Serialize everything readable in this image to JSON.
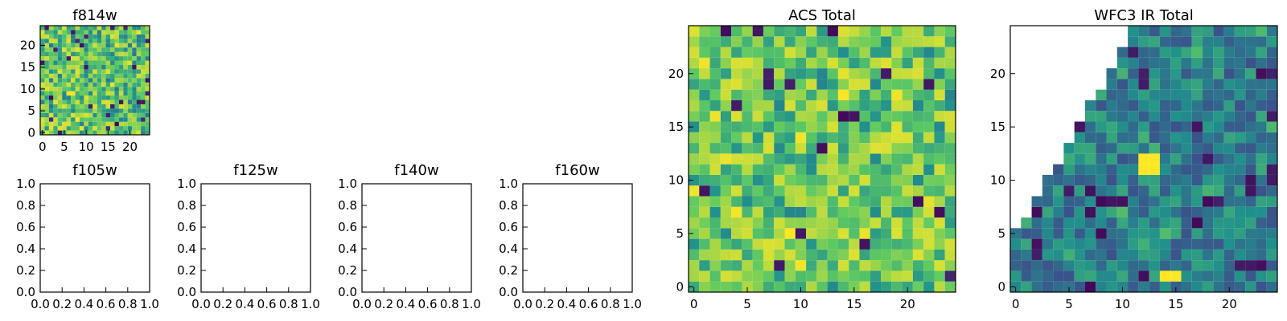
{
  "figure": {
    "background": "#ffffff",
    "colormap": "viridis"
  },
  "chart_data": [
    {
      "id": "f814w",
      "type": "heatmap",
      "title": "f814w",
      "grid": false,
      "xlim": [
        -0.5,
        24.5
      ],
      "ylim": [
        -0.5,
        24.5
      ],
      "xticks": [
        0,
        5,
        10,
        15,
        20
      ],
      "yticks": [
        0,
        5,
        10,
        15,
        20
      ],
      "tick_labels_x": [
        "0",
        "5",
        "10",
        "15",
        "20"
      ],
      "tick_labels_y": [
        "0",
        "5",
        "10",
        "15",
        "20"
      ],
      "origin": "lower",
      "shape": [
        25,
        25
      ],
      "value_range": [
        0,
        1
      ],
      "values": null,
      "note_values": "25x25 grid of noise-like values (seeded pseudo-random), mostly mid-high with sparse low-valued pixels"
    },
    {
      "id": "f105w",
      "type": "heatmap",
      "title": "f105w",
      "empty": true,
      "xlim": [
        0,
        1
      ],
      "ylim": [
        0,
        1
      ],
      "tick_labels_x": [
        "0.0",
        "0.2",
        "0.4",
        "0.6",
        "0.8",
        "1.0"
      ],
      "tick_labels_y": [
        "0.0",
        "0.2",
        "0.4",
        "0.6",
        "0.8",
        "1.0"
      ]
    },
    {
      "id": "f125w",
      "type": "heatmap",
      "title": "f125w",
      "empty": true,
      "xlim": [
        0,
        1
      ],
      "ylim": [
        0,
        1
      ],
      "tick_labels_x": [
        "0.0",
        "0.2",
        "0.4",
        "0.6",
        "0.8",
        "1.0"
      ],
      "tick_labels_y": [
        "0.0",
        "0.2",
        "0.4",
        "0.6",
        "0.8",
        "1.0"
      ]
    },
    {
      "id": "f140w",
      "type": "heatmap",
      "title": "f140w",
      "empty": true,
      "xlim": [
        0,
        1
      ],
      "ylim": [
        0,
        1
      ],
      "tick_labels_x": [
        "0.0",
        "0.2",
        "0.4",
        "0.6",
        "0.8",
        "1.0"
      ],
      "tick_labels_y": [
        "0.0",
        "0.2",
        "0.4",
        "0.6",
        "0.8",
        "1.0"
      ]
    },
    {
      "id": "f160w",
      "type": "heatmap",
      "title": "f160w",
      "empty": true,
      "xlim": [
        0,
        1
      ],
      "ylim": [
        0,
        1
      ],
      "tick_labels_x": [
        "0.0",
        "0.2",
        "0.4",
        "0.6",
        "0.8",
        "1.0"
      ],
      "tick_labels_y": [
        "0.0",
        "0.2",
        "0.4",
        "0.6",
        "0.8",
        "1.0"
      ]
    },
    {
      "id": "acs_total",
      "type": "heatmap",
      "title": "ACS Total",
      "grid": false,
      "xlim": [
        -0.5,
        24.5
      ],
      "ylim": [
        -0.5,
        24.5
      ],
      "xticks": [
        0,
        5,
        10,
        15,
        20
      ],
      "yticks": [
        0,
        5,
        10,
        15,
        20
      ],
      "tick_labels_x": [
        "0",
        "5",
        "10",
        "15",
        "20"
      ],
      "tick_labels_y": [
        "0",
        "5",
        "10",
        "15",
        "20"
      ],
      "origin": "lower",
      "shape": [
        25,
        25
      ],
      "value_range": [
        0,
        1
      ],
      "values": null,
      "note_values": "25x25 grid of noise-like values (seeded pseudo-random), mostly mid-high with sparse low-valued pixels"
    },
    {
      "id": "wfc3_ir_total",
      "type": "heatmap",
      "title": "WFC3 IR Total",
      "grid": false,
      "xlim": [
        -0.5,
        24.5
      ],
      "ylim": [
        -0.5,
        24.5
      ],
      "xticks": [
        0,
        5,
        10,
        15,
        20
      ],
      "yticks": [
        0,
        5,
        10,
        15,
        20
      ],
      "tick_labels_x": [
        "0",
        "5",
        "10",
        "15",
        "20"
      ],
      "tick_labels_y": [
        "0",
        "5",
        "10",
        "15",
        "20"
      ],
      "origin": "lower",
      "shape": [
        25,
        25
      ],
      "value_range": [
        0,
        1
      ],
      "values": null,
      "masked_region": "upper-left triangle (no data)",
      "highlight_blocks": [
        {
          "x": [
            12,
            13
          ],
          "y": [
            11,
            12
          ],
          "value": 1.0
        },
        {
          "x": [
            14,
            15
          ],
          "y": [
            1,
            1
          ],
          "value": 1.0
        }
      ],
      "note_values": "25x25 grid of mostly mid-valued noise with sparse low-valued pixels; top-left triangle is masked (no data)"
    }
  ]
}
